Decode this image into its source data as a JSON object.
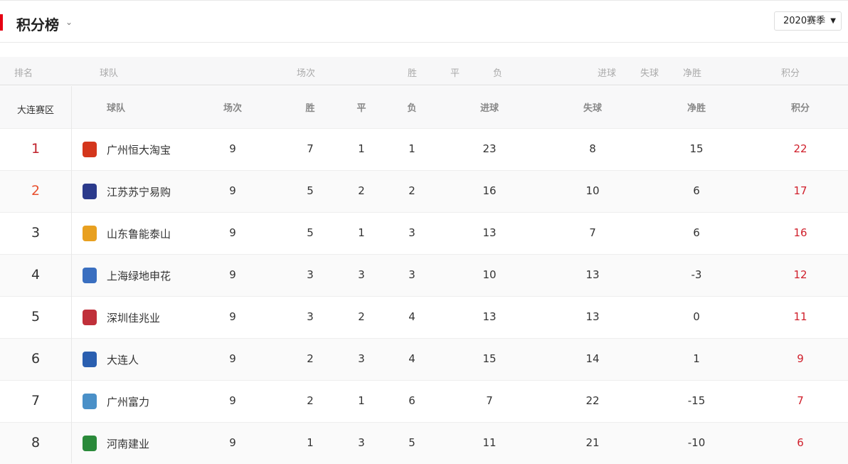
{
  "header": {
    "title": "积分榜",
    "season": "2020赛季"
  },
  "old_columns": [
    "排名",
    "球队",
    "场次",
    "胜",
    "平",
    "负",
    "进球",
    "失球",
    "净胜",
    "积分"
  ],
  "group": {
    "zone": "大连赛区",
    "columns": [
      "球队",
      "场次",
      "胜",
      "平",
      "负",
      "进球",
      "失球",
      "净胜",
      "积分"
    ]
  },
  "colors": {
    "accent": "#e60012",
    "rank1": "#c0202a",
    "rank2": "#e8502e",
    "points": "#d0202c"
  },
  "rows": [
    {
      "rank": "1",
      "team": "广州恒大淘宝",
      "played": "9",
      "w": "7",
      "d": "1",
      "l": "1",
      "gf": "23",
      "ga": "8",
      "gd": "15",
      "pts": "22",
      "logo_color": "#d4361c"
    },
    {
      "rank": "2",
      "team": "江苏苏宁易购",
      "played": "9",
      "w": "5",
      "d": "2",
      "l": "2",
      "gf": "16",
      "ga": "10",
      "gd": "6",
      "pts": "17",
      "logo_color": "#2b3a8c"
    },
    {
      "rank": "3",
      "team": "山东鲁能泰山",
      "played": "9",
      "w": "5",
      "d": "1",
      "l": "3",
      "gf": "13",
      "ga": "7",
      "gd": "6",
      "pts": "16",
      "logo_color": "#e8a020"
    },
    {
      "rank": "4",
      "team": "上海绿地申花",
      "played": "9",
      "w": "3",
      "d": "3",
      "l": "3",
      "gf": "10",
      "ga": "13",
      "gd": "-3",
      "pts": "12",
      "logo_color": "#3a6fc0"
    },
    {
      "rank": "5",
      "team": "深圳佳兆业",
      "played": "9",
      "w": "3",
      "d": "2",
      "l": "4",
      "gf": "13",
      "ga": "13",
      "gd": "0",
      "pts": "11",
      "logo_color": "#c0303a"
    },
    {
      "rank": "6",
      "team": "大连人",
      "played": "9",
      "w": "2",
      "d": "3",
      "l": "4",
      "gf": "15",
      "ga": "14",
      "gd": "1",
      "pts": "9",
      "logo_color": "#2a5fb0"
    },
    {
      "rank": "7",
      "team": "广州富力",
      "played": "9",
      "w": "2",
      "d": "1",
      "l": "6",
      "gf": "7",
      "ga": "22",
      "gd": "-15",
      "pts": "7",
      "logo_color": "#4a90c8"
    },
    {
      "rank": "8",
      "team": "河南建业",
      "played": "9",
      "w": "1",
      "d": "3",
      "l": "5",
      "gf": "11",
      "ga": "21",
      "gd": "-10",
      "pts": "6",
      "logo_color": "#2a8a3a"
    }
  ]
}
